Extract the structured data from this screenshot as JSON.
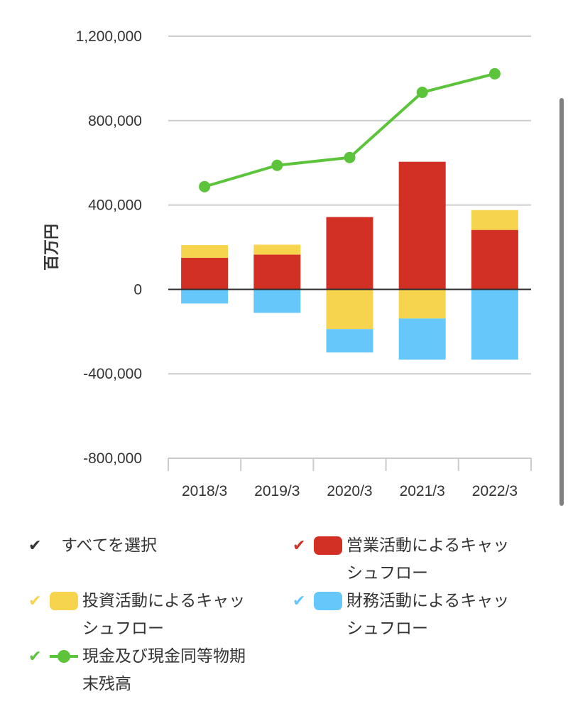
{
  "chart_data": {
    "type": "bar",
    "subtype": "stacked bar with line overlay",
    "title": "",
    "xlabel": "",
    "ylabel": "百万円",
    "ylim": [
      -800000,
      1200000
    ],
    "yticks": [
      1200000,
      800000,
      400000,
      0,
      -400000,
      -800000
    ],
    "ytick_labels": [
      "1,200,000",
      "800,000",
      "400,000",
      "0",
      "-400,000",
      "-800,000"
    ],
    "grid": true,
    "legend_position": "bottom",
    "categories": [
      "2018/3",
      "2019/3",
      "2020/3",
      "2021/3",
      "2022/3"
    ],
    "series": [
      {
        "name": "営業活動によるキャッシュフロー",
        "type": "bar",
        "color": "#d22f25",
        "values": [
          150000,
          165000,
          343000,
          605000,
          282000
        ]
      },
      {
        "name": "投資活動によるキャッシュフロー",
        "type": "bar",
        "color": "#f7d44e",
        "values": [
          60000,
          47000,
          -188000,
          -138000,
          94000
        ]
      },
      {
        "name": "財務活動によるキャッシュフロー",
        "type": "bar",
        "color": "#66c8fa",
        "values": [
          -67000,
          -111000,
          -111000,
          -195000,
          -333000
        ]
      },
      {
        "name": "現金及び現金同等物期末残高",
        "type": "line",
        "color": "#5cc43a",
        "values": [
          487000,
          588000,
          625000,
          934000,
          1022000
        ]
      }
    ]
  },
  "legend": {
    "select_all": {
      "label": "すべてを選択",
      "check_color": "#333333"
    },
    "items": [
      {
        "label": "営業活動によるキャッシュフロー",
        "check_color": "#d22f25",
        "swatch_color": "#d22f25"
      },
      {
        "label": "投資活動によるキャッシュフロー",
        "check_color": "#f7d44e",
        "swatch_color": "#f7d44e"
      },
      {
        "label": "財務活動によるキャッシュフロー",
        "check_color": "#66c8fa",
        "swatch_color": "#66c8fa"
      },
      {
        "label": "現金及び現金同等物期末残高",
        "check_color": "#5cc43a",
        "swatch_color": "#5cc43a"
      }
    ],
    "check_glyph": "✔"
  }
}
